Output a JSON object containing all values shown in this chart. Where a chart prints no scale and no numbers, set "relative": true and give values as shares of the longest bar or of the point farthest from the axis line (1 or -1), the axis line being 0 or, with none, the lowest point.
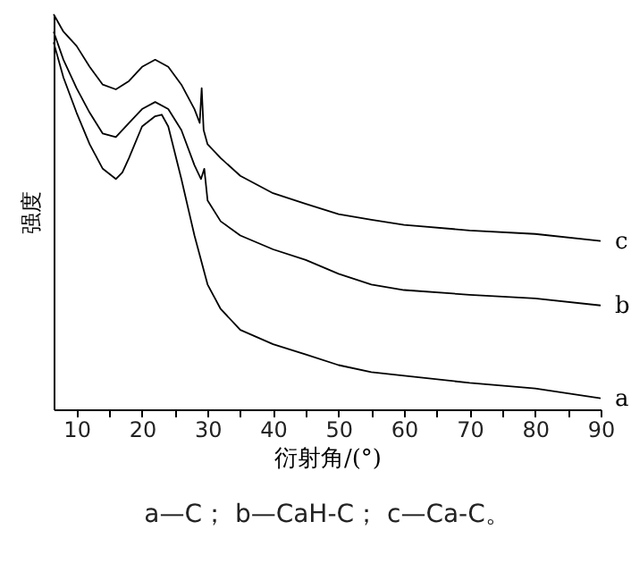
{
  "chart_data": {
    "type": "line",
    "relative": true,
    "xlabel": "衍射角/(°)",
    "ylabel": "强度",
    "xlim": [
      6.5,
      90
    ],
    "xticks": [
      10,
      {
        "value": 15,
        "label": null
      },
      20,
      {
        "value": 25,
        "label": null
      },
      30,
      {
        "value": 35,
        "label": null
      },
      40,
      {
        "value": 45,
        "label": null
      },
      50,
      {
        "value": 55,
        "label": null
      },
      60,
      {
        "value": 65,
        "label": null
      },
      70,
      {
        "value": 75,
        "label": null
      },
      80,
      {
        "value": 85,
        "label": null
      },
      90
    ],
    "series": [
      {
        "name": "c",
        "color": "#000000",
        "x": [
          6.5,
          8,
          10,
          12,
          14,
          16,
          18,
          20,
          22,
          24,
          26,
          28,
          28.8,
          29.1,
          29.4,
          30,
          32,
          35,
          40,
          45,
          50,
          55,
          60,
          70,
          80,
          90
        ],
        "values": [
          1.0,
          0.956,
          0.92,
          0.867,
          0.822,
          0.81,
          0.831,
          0.867,
          0.885,
          0.867,
          0.822,
          0.76,
          0.725,
          0.813,
          0.707,
          0.671,
          0.636,
          0.591,
          0.547,
          0.52,
          0.494,
          0.48,
          0.467,
          0.453,
          0.444,
          0.426
        ]
      },
      {
        "name": "b",
        "color": "#000000",
        "x": [
          6.5,
          8,
          10,
          12,
          14,
          16,
          18,
          20,
          22,
          24,
          26,
          28,
          29,
          29.5,
          30,
          32,
          35,
          40,
          45,
          50,
          55,
          60,
          70,
          80,
          90
        ],
        "values": [
          0.956,
          0.885,
          0.813,
          0.751,
          0.698,
          0.689,
          0.725,
          0.76,
          0.778,
          0.76,
          0.707,
          0.618,
          0.583,
          0.609,
          0.529,
          0.476,
          0.44,
          0.405,
          0.378,
          0.343,
          0.316,
          0.302,
          0.29,
          0.281,
          0.263
        ]
      },
      {
        "name": "a",
        "color": "#000000",
        "x": [
          6.5,
          8,
          10,
          12,
          14,
          16,
          17,
          18,
          20,
          22,
          23,
          24,
          26,
          28,
          30,
          32,
          35,
          40,
          45,
          50,
          55,
          60,
          70,
          80,
          90
        ],
        "values": [
          0.929,
          0.84,
          0.751,
          0.671,
          0.609,
          0.583,
          0.6,
          0.636,
          0.716,
          0.742,
          0.746,
          0.716,
          0.583,
          0.44,
          0.316,
          0.254,
          0.201,
          0.165,
          0.139,
          0.112,
          0.094,
          0.085,
          0.067,
          0.053,
          0.028
        ]
      }
    ],
    "annotations": [
      "a—C； b—CaH-C； c—Ca-C。"
    ],
    "grid": false,
    "marker": "none",
    "line_style": "solid"
  }
}
